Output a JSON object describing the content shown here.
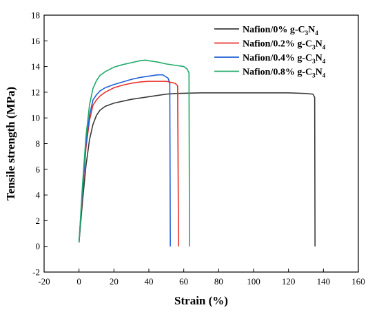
{
  "chart_data": {
    "type": "line",
    "title": "",
    "xlabel": "Strain (%)",
    "ylabel": "Tensile strength (MPa)",
    "xlim": [
      -20,
      160
    ],
    "ylim": [
      -2,
      18
    ],
    "xticks": [
      -20,
      0,
      20,
      40,
      60,
      80,
      100,
      120,
      140,
      160
    ],
    "yticks": [
      -2,
      0,
      2,
      4,
      6,
      8,
      10,
      12,
      14,
      16,
      18
    ],
    "grid": false,
    "legend_position": "top-right",
    "series": [
      {
        "name": "Nafion/0% g-C3N4",
        "legend": {
          "prefix": "Nafion/0% g-C",
          "sub1": "3",
          "mid": "N",
          "sub2": "4"
        },
        "color": "#3a3a3a",
        "x": [
          0,
          2,
          4,
          6,
          8,
          10,
          12,
          15,
          20,
          25,
          30,
          40,
          50,
          55,
          60,
          70,
          80,
          100,
          120,
          130,
          134,
          135,
          135.2
        ],
        "y": [
          0.3,
          3.5,
          6.3,
          8.3,
          9.5,
          10.2,
          10.6,
          10.9,
          11.15,
          11.3,
          11.45,
          11.65,
          11.85,
          11.9,
          11.92,
          11.95,
          11.95,
          11.95,
          11.95,
          11.9,
          11.85,
          11.6,
          0
        ]
      },
      {
        "name": "Nafion/0.2% g-C3N4",
        "legend": {
          "prefix": "Nafion/0.2% g-C",
          "sub1": "3",
          "mid": "N",
          "sub2": "4"
        },
        "color": "#e8302a",
        "x": [
          0,
          2,
          4,
          6,
          8,
          10,
          12,
          15,
          20,
          25,
          30,
          35,
          40,
          45,
          50,
          55,
          56.5,
          57
        ],
        "y": [
          0.3,
          4.2,
          7.7,
          9.8,
          11.0,
          11.4,
          11.7,
          12.0,
          12.35,
          12.55,
          12.7,
          12.8,
          12.85,
          12.85,
          12.85,
          12.7,
          12.5,
          0
        ]
      },
      {
        "name": "Nafion/0.4% g-C3N4",
        "legend": {
          "prefix": "Nafion/0.4% g-C",
          "sub1": "3",
          "mid": "N",
          "sub2": "4"
        },
        "color": "#1f5fd6",
        "x": [
          0,
          2,
          4,
          6,
          8,
          10,
          12,
          15,
          20,
          25,
          30,
          35,
          40,
          45,
          48,
          51,
          52,
          52.3
        ],
        "y": [
          0.3,
          4.4,
          8.0,
          10.2,
          11.4,
          11.8,
          12.1,
          12.35,
          12.6,
          12.8,
          13.0,
          13.15,
          13.25,
          13.35,
          13.35,
          13.1,
          12.7,
          0
        ]
      },
      {
        "name": "Nafion/0.8% g-C3N4",
        "legend": {
          "prefix": "Nafion/0.8% g-C",
          "sub1": "3",
          "mid": "N",
          "sub2": "4"
        },
        "color": "#1faa6a",
        "x": [
          0,
          2,
          4,
          6,
          8,
          10,
          12,
          15,
          20,
          25,
          30,
          35,
          38,
          40,
          45,
          50,
          55,
          60,
          62,
          63,
          63.3
        ],
        "y": [
          0.3,
          4.8,
          8.6,
          11.0,
          12.3,
          12.9,
          13.3,
          13.6,
          13.95,
          14.15,
          14.3,
          14.45,
          14.5,
          14.45,
          14.35,
          14.2,
          14.1,
          14.0,
          13.8,
          13.5,
          0
        ]
      }
    ]
  }
}
